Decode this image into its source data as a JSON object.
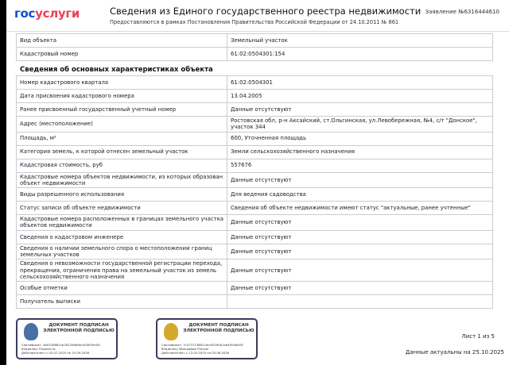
{
  "header": {
    "logo_a": "гос",
    "logo_b": "услуги",
    "title": "Сведения из Единого государственного реестра недвижимости",
    "subtitle": "Предоставляются в рамках Постановления Правительства Российской Федерации от 24.10.2011 № 861",
    "application": "Заявление №6316444610"
  },
  "object_table": [
    {
      "k": "Вид объекта",
      "v": "Земельный участок"
    },
    {
      "k": "Кадастровый номер",
      "v": "61:02:0504301:154"
    }
  ],
  "section_title": "Сведения об основных характеристиках объекта",
  "main_table": [
    {
      "k": "Номер кадастрового квартала",
      "v": "61:02:0504301"
    },
    {
      "k": "Дата присвоения кадастрового номера",
      "v": "13.04.2005"
    },
    {
      "k": "Ранее присвоенный государственный учетный номер",
      "v": "Данные отсутствуют"
    },
    {
      "k": "Адрес (местоположение)",
      "v": "Ростовская обл, р-н Аксайский, ст.Ольгинская, ул.Левобережная, №4, с/т \"Донское\", участок 344"
    },
    {
      "k": "Площадь, м²",
      "v": "600, Уточненная площадь"
    },
    {
      "k": "Категория земель, к которой отнесен земельный участок",
      "v": "Земли сельскохозяйственного назначения"
    },
    {
      "k": "Кадастровая стоимость, руб",
      "v": "557676"
    },
    {
      "k": "Кадастровые номера объектов недвижимости, из которых образован объект недвижимости",
      "v": "Данные отсутствуют"
    },
    {
      "k": "Виды разрешенного использования",
      "v": "Для ведения садоводства"
    },
    {
      "k": "Статус записи об объекте недвижимости",
      "v": "Сведения об объекте недвижимости имеют статус \"актуальные, ранее учтенные\""
    },
    {
      "k": "Кадастровые номера расположенных в границах земельного участка объектов недвижимости",
      "v": "Данные отсутствуют"
    },
    {
      "k": "Сведения о кадастровом инженере",
      "v": "Данные отсутствуют"
    },
    {
      "k": "Сведения о наличии земельного спора о местоположении границ земельных участков",
      "v": "Данные отсутствуют"
    },
    {
      "k": "Сведения о невозможности государственной регистрации перехода, прекращения, ограничения права на земельный участок из земель сельскохозяйственного назначения",
      "v": "Данные отсутствуют"
    },
    {
      "k": "Особые отметки",
      "v": "Данные отсутствуют"
    },
    {
      "k": "Получатель выписки",
      "v": ""
    }
  ],
  "signatures": [
    {
      "heading": "ДОКУМЕНТ ПОДПИСАН ЭЛЕКТРОННОЙ ПОДПИСЬЮ",
      "cert": "Сертификат: 4b0528661cb1622fb6e6cc63d55ed3c",
      "owner": "Владелец: Росреестр",
      "valid": "Действителен: с 02.07.2025 по 25.09.2026",
      "emblem_color": "#4a6fa5"
    },
    {
      "heading": "ДОКУМЕНТ ПОДПИСАН ЭЛЕКТРОННОЙ ПОДПИСЬЮ",
      "cert": "Сертификат: 7c4737136811dcd520f0b1aa4f40e645f",
      "owner": "Владелец: Минцифры России",
      "valid": "Действителен: с 12.03.2025 по 05.06.2026",
      "emblem_color": "#d4a82a"
    }
  ],
  "footer": {
    "sheet": "Лист 1 из 5",
    "actual": "Данные актуальны на 25.10.2025"
  }
}
